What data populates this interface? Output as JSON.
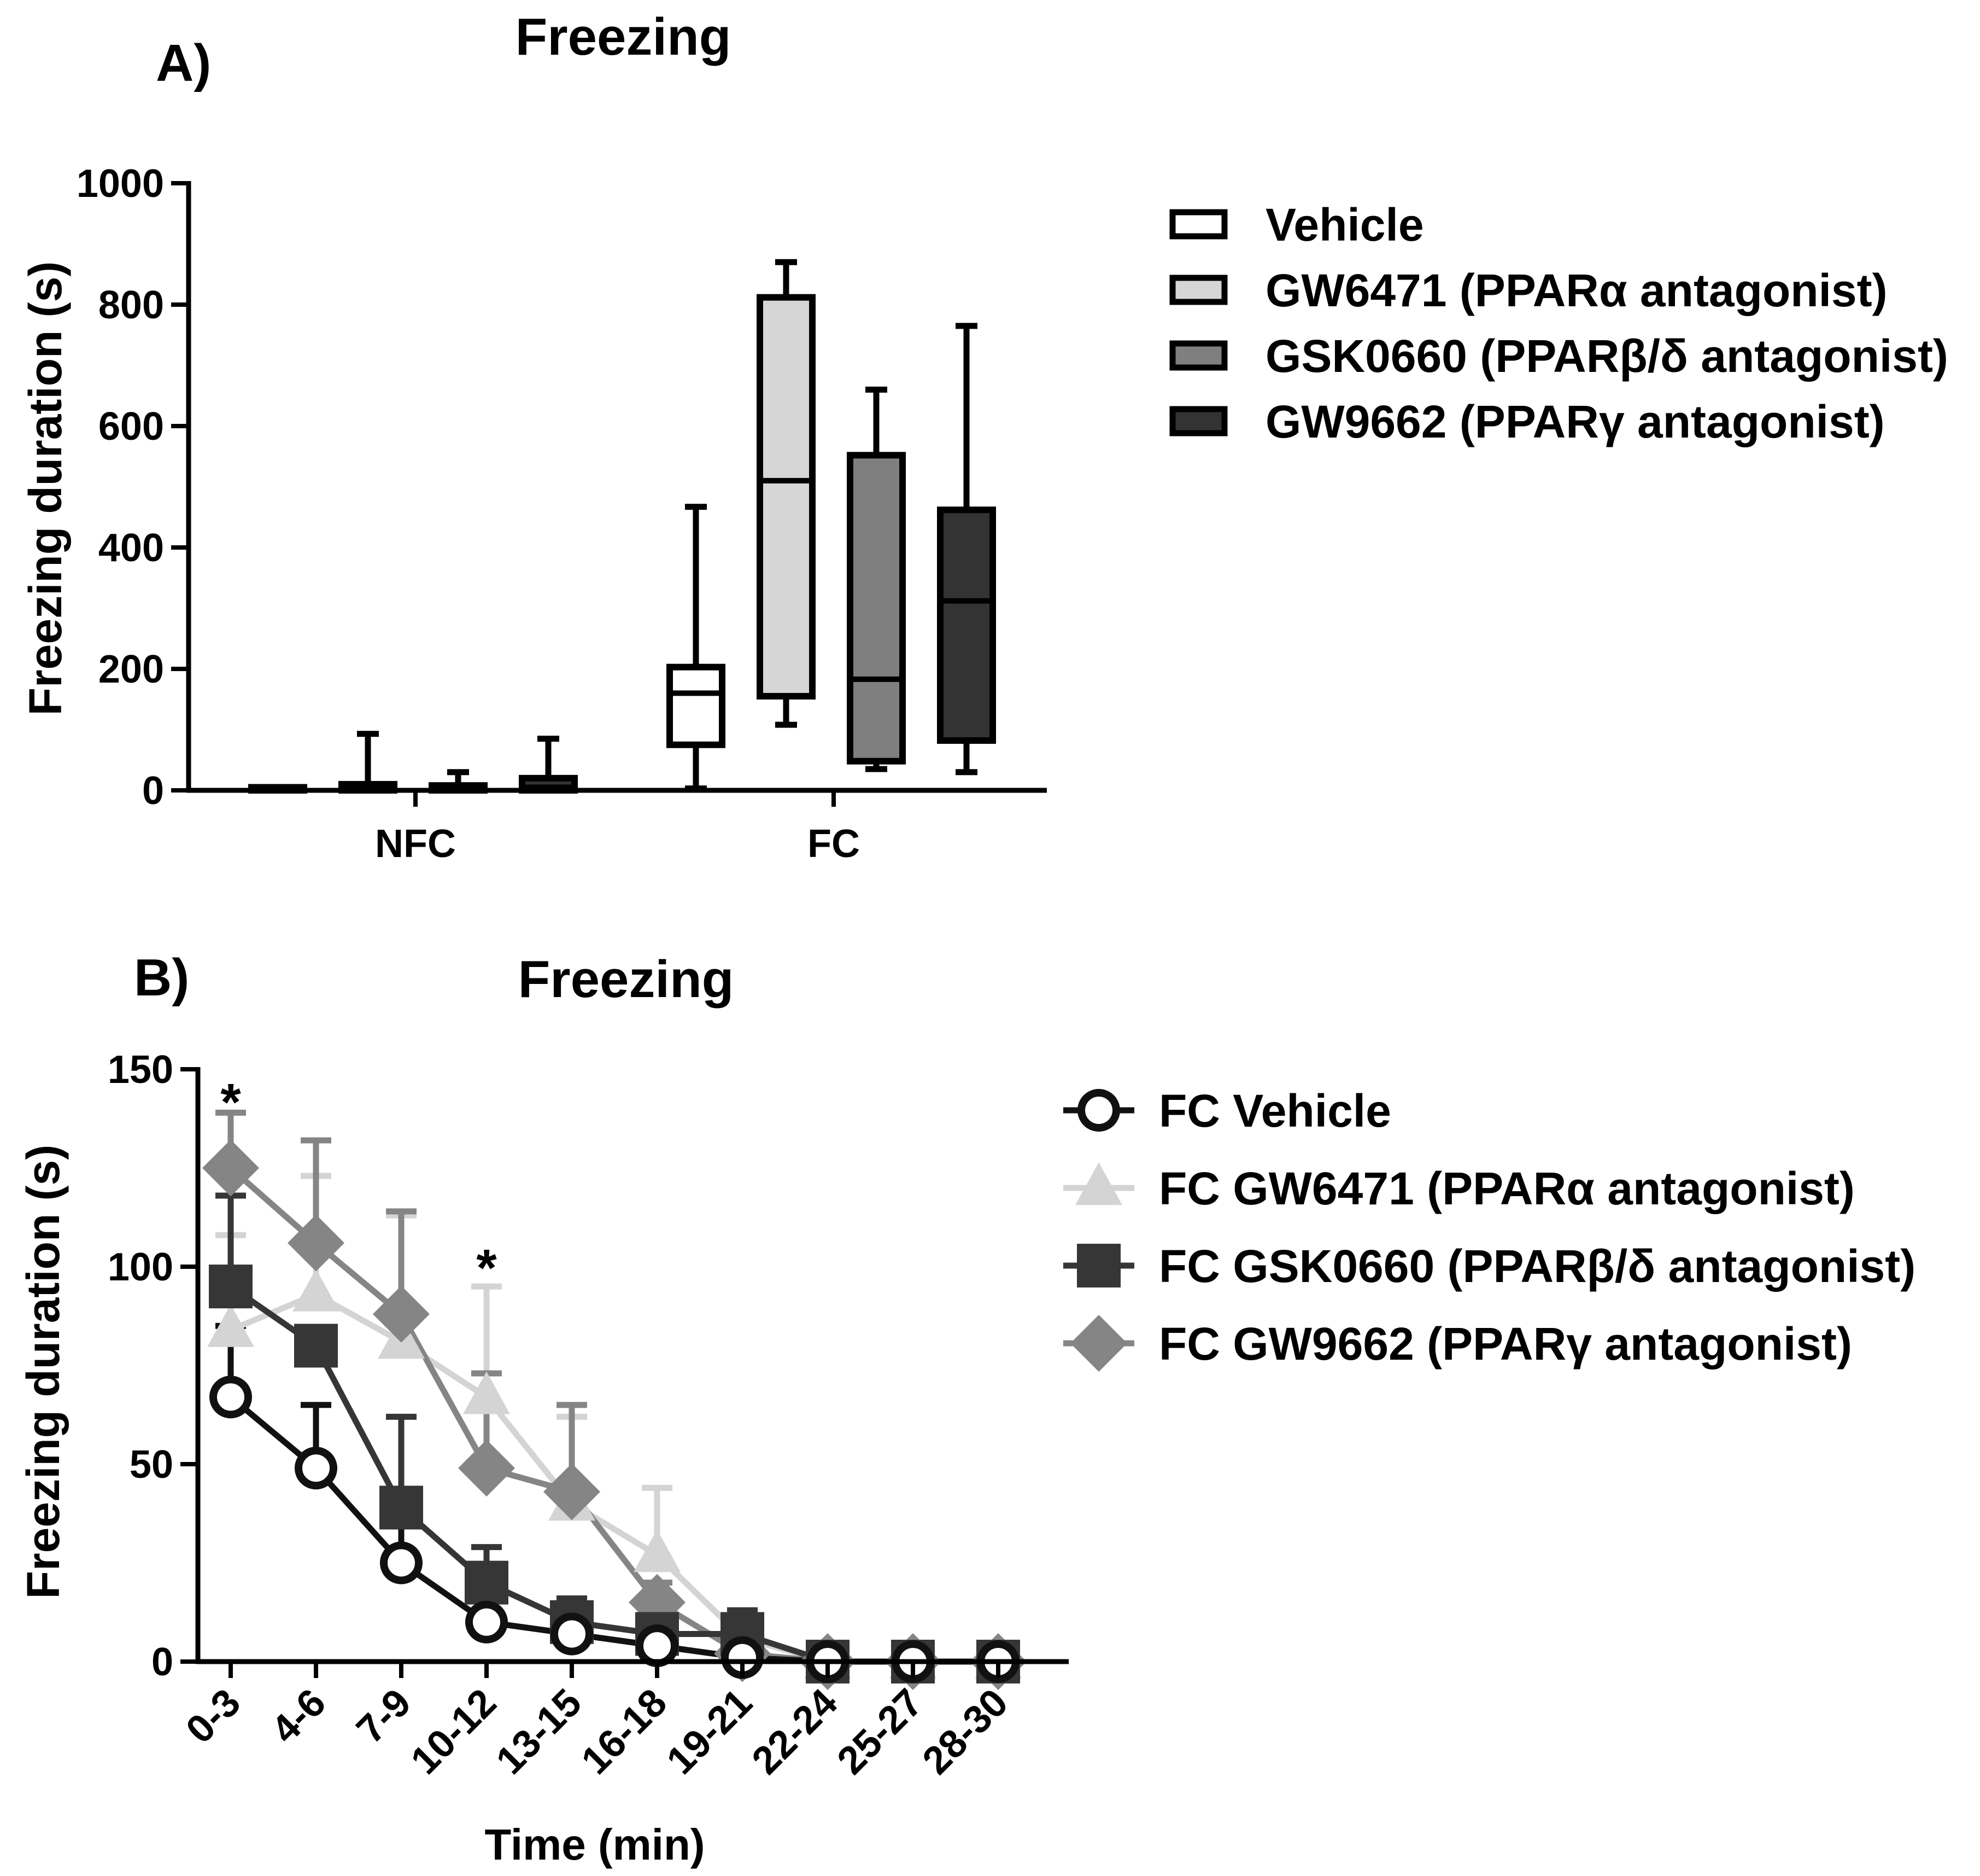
{
  "colors": {
    "axis": "#000000",
    "vehicle": "#ffffff",
    "gw6471": "#d6d6d6",
    "gsk0660": "#7f7f7f",
    "gw9662": "#333333",
    "line_vehicle": "#111111",
    "line_gw6471": "#d4d4d4",
    "line_gsk0660": "#363636",
    "line_gw9662": "#858585"
  },
  "chart_data": [
    {
      "panel": "A)",
      "type": "box",
      "title": "Freezing",
      "xlabel": "",
      "ylabel": "Freezing duration (s)",
      "ylim": [
        0,
        1000
      ],
      "yticks": [
        0,
        200,
        400,
        600,
        800,
        1000
      ],
      "categories": [
        "NFC",
        "FC"
      ],
      "legend_position": "right",
      "series": [
        {
          "name": "Vehicle",
          "color": "#ffffff",
          "boxes": [
            {
              "min": 0,
              "q1": 0,
              "median": 0,
              "q3": 5,
              "max": 5
            },
            {
              "min": 3,
              "q1": 75,
              "median": 160,
              "q3": 203,
              "max": 467
            }
          ]
        },
        {
          "name": "GW6471  (PPARα antagonist)",
          "color": "#d6d6d6",
          "boxes": [
            {
              "min": 0,
              "q1": 0,
              "median": 2,
              "q3": 10,
              "max": 93
            },
            {
              "min": 108,
              "q1": 155,
              "median": 510,
              "q3": 812,
              "max": 870
            }
          ]
        },
        {
          "name": "GSK0660 (PPARβ/δ antagonist)",
          "color": "#7f7f7f",
          "boxes": [
            {
              "min": 0,
              "q1": 0,
              "median": 1,
              "q3": 8,
              "max": 30
            },
            {
              "min": 35,
              "q1": 48,
              "median": 183,
              "q3": 552,
              "max": 660
            }
          ]
        },
        {
          "name": "GW9662  (PPARγ antagonist)",
          "color": "#333333",
          "boxes": [
            {
              "min": 0,
              "q1": 0,
              "median": 5,
              "q3": 20,
              "max": 85
            },
            {
              "min": 30,
              "q1": 82,
              "median": 312,
              "q3": 462,
              "max": 765
            }
          ]
        }
      ]
    },
    {
      "panel": "B)",
      "type": "line",
      "title": "Freezing",
      "xlabel": "Time (min)",
      "ylabel": "Freezing duration (s)",
      "ylim": [
        0,
        150
      ],
      "yticks": [
        0,
        50,
        100,
        150
      ],
      "categories": [
        "0-3",
        "4-6",
        "7-9",
        "10-12",
        "13-15",
        "16-18",
        "19-21",
        "22-24",
        "25-27",
        "28-30"
      ],
      "annotations": [
        {
          "text": "*",
          "category": "0-3",
          "y": 142
        },
        {
          "text": "*",
          "category": "10-12",
          "y": 100
        }
      ],
      "legend_position": "right",
      "series": [
        {
          "name": "FC Vehicle",
          "marker": "circle",
          "color": "#111111",
          "values": [
            67,
            49,
            25,
            10,
            7,
            4,
            1,
            0,
            0,
            0
          ],
          "errors": [
            18,
            16,
            12,
            0,
            0,
            0,
            0,
            0,
            0,
            0
          ]
        },
        {
          "name": "FC GW6471 (PPARα antagonist)",
          "marker": "triangle",
          "color": "#d4d4d4",
          "values": [
            84,
            93,
            81,
            67,
            40,
            27,
            6,
            0,
            0,
            0
          ],
          "errors": [
            24,
            30,
            32,
            28,
            22,
            17,
            6,
            3,
            1,
            0
          ]
        },
        {
          "name": "FC GSK0660 (PPARβ/δ antagonist)",
          "marker": "square",
          "color": "#363636",
          "values": [
            95,
            80,
            39,
            20,
            10,
            7,
            7,
            0,
            0,
            0
          ],
          "errors": [
            23,
            0,
            23,
            9,
            6,
            5,
            6,
            3,
            1,
            0
          ]
        },
        {
          "name": "FC GW9662 (PPARγ antagonist)",
          "marker": "diamond",
          "color": "#858585",
          "values": [
            125,
            106,
            88,
            49,
            43,
            15,
            2,
            0,
            0,
            0
          ],
          "errors": [
            14,
            26,
            26,
            24,
            22,
            5,
            2,
            0,
            0,
            0
          ]
        }
      ]
    }
  ]
}
